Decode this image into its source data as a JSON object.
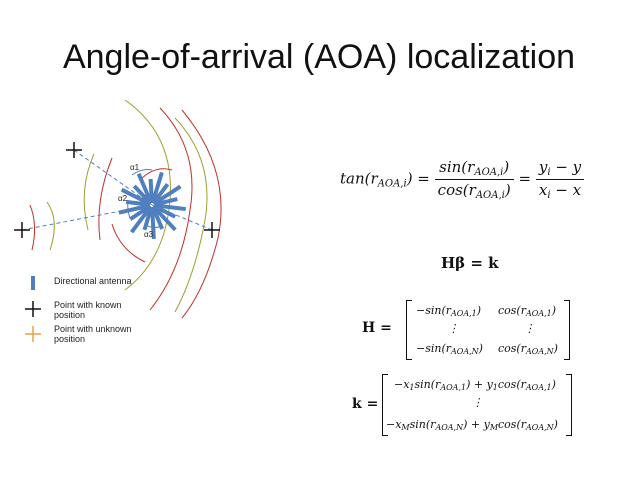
{
  "slide": {
    "title": "Angle-of-arrival (AOA) localization"
  },
  "diagram": {
    "angle_labels": [
      "α1",
      "α2",
      "α3"
    ],
    "colors": {
      "antenna": "#4f7fbf",
      "known": "#111111",
      "unknown": "#e8a04a",
      "wave_red": "#c0302a",
      "wave_olive": "#9aa030",
      "dashed": "#4f7fbf"
    }
  },
  "legend": {
    "items": [
      {
        "symbol": "|",
        "label": "Directional antenna",
        "icon": "directional-antenna-icon"
      },
      {
        "symbol": "+",
        "label": "Point with known position",
        "icon": "known-point-icon"
      },
      {
        "symbol": "+",
        "label": "Point with unknown position",
        "icon": "unknown-point-icon"
      }
    ]
  },
  "equations": {
    "eq1": {
      "lhs": "tan(r",
      "lhs_sub": "AOA,i",
      "lhs_close": ") =",
      "num": "sin(r",
      "num_sub": "AOA,i",
      "num_close": ")",
      "den": "cos(r",
      "den_sub": "AOA,i",
      "den_close": ")",
      "eq": "=",
      "num2": "y",
      "num2_sub": "i",
      "num2_rest": " − y",
      "den2": "x",
      "den2_sub": "i",
      "den2_rest": " − x"
    },
    "eq2": "Hβ = k",
    "H": {
      "label": "H =",
      "rows": [
        [
          "−sin(r",
          "AOA,1",
          ")",
          "cos(r",
          "AOA,1",
          ")"
        ],
        [
          "⋮",
          "",
          "",
          "⋮",
          "",
          ""
        ],
        [
          "−sin(r",
          "AOA,N",
          ")",
          "cos(r",
          "AOA,N",
          ")"
        ]
      ]
    },
    "k": {
      "label": "k =",
      "rows": [
        [
          "−x",
          "1",
          "sin(r",
          "AOA,1",
          ") + y",
          "1",
          "cos(r",
          "AOA,1",
          ")"
        ],
        [
          "⋮"
        ],
        [
          "−x",
          "M",
          "sin(r",
          "AOA,N",
          ") + y",
          "M",
          "cos(r",
          "AOA,N",
          ")"
        ]
      ]
    }
  }
}
